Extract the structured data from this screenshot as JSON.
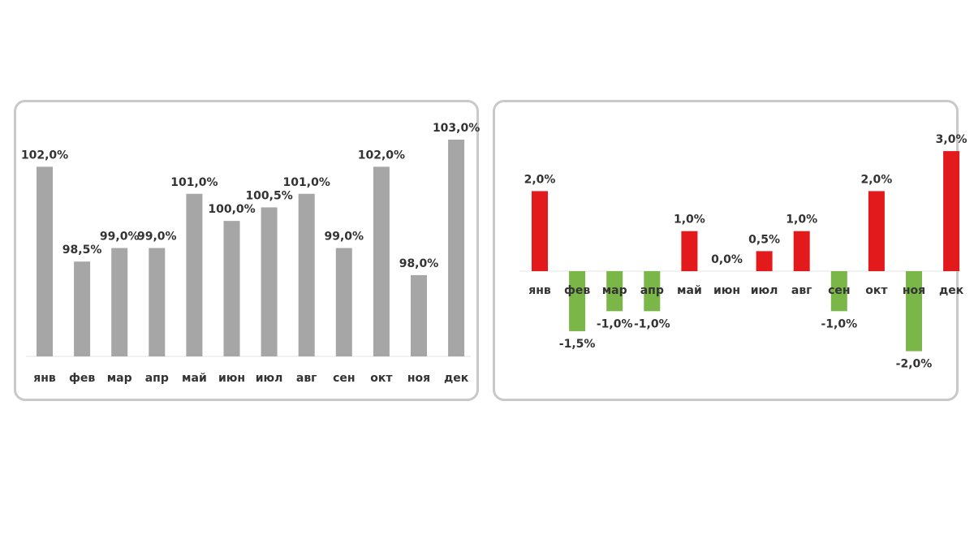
{
  "chart_data": [
    {
      "type": "bar",
      "categories": [
        "янв",
        "фев",
        "мар",
        "апр",
        "май",
        "июн",
        "июл",
        "авг",
        "сен",
        "окт",
        "ноя",
        "дек"
      ],
      "values": [
        102.0,
        98.5,
        99.0,
        99.0,
        101.0,
        100.0,
        100.5,
        101.0,
        99.0,
        102.0,
        98.0,
        103.0
      ],
      "labels": [
        "102,0%",
        "98,5%",
        "99,0%",
        "99,0%",
        "101,0%",
        "100,0%",
        "100,5%",
        "101,0%",
        "99,0%",
        "102,0%",
        "98,0%",
        "103,0%"
      ],
      "ylim": [
        95,
        103
      ],
      "bar_color": "#a6a6a6",
      "grid": false,
      "legend": "none"
    },
    {
      "type": "bar",
      "categories": [
        "янв",
        "фев",
        "мар",
        "апр",
        "май",
        "июн",
        "июл",
        "авг",
        "сен",
        "окт",
        "ноя",
        "дек"
      ],
      "values": [
        2.0,
        -1.5,
        -1.0,
        -1.0,
        1.0,
        0.0,
        0.5,
        1.0,
        -1.0,
        2.0,
        -2.0,
        3.0
      ],
      "labels": [
        "2,0%",
        "-1,5%",
        "-1,0%",
        "-1,0%",
        "1,0%",
        "0,0%",
        "0,5%",
        "1,0%",
        "-1,0%",
        "2,0%",
        "-2,0%",
        "3,0%"
      ],
      "ylim": [
        -2,
        3
      ],
      "positive_color": "#e31a1c",
      "negative_color": "#7ab648",
      "grid": false,
      "legend": "none"
    }
  ]
}
